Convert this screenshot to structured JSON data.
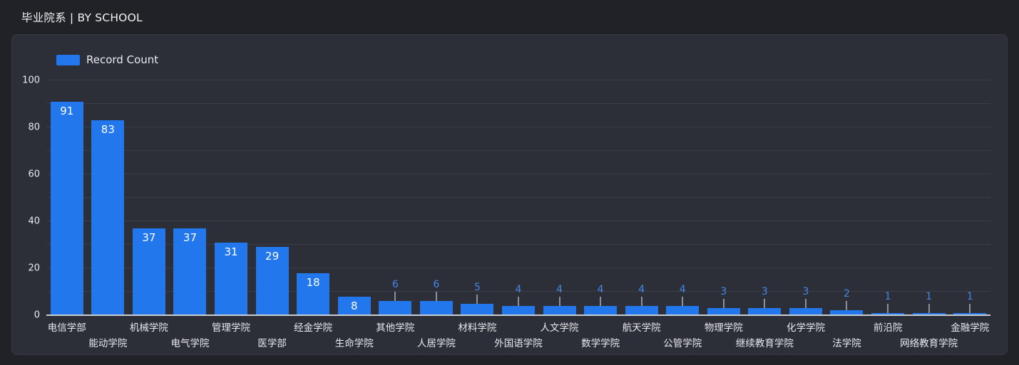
{
  "page": {
    "title": "毕业院系 | BY SCHOOL"
  },
  "legend": {
    "label": "Record Count"
  },
  "colors": {
    "page_bg": "#202227",
    "panel_bg": "#2c2f38",
    "panel_border": "#363a44",
    "bar": "#2277ec",
    "value_label_inside": "#ffffff",
    "value_label_outside": "#4487e6",
    "leader_line": "#8b9099",
    "gridline": "#3a3e47",
    "axis_line": "#c9ced6",
    "axis_text": "#e8eaed"
  },
  "chart_data": {
    "type": "bar",
    "title": "毕业院系 | BY SCHOOL",
    "legend_entries": [
      "Record Count"
    ],
    "legend_position": "top-left",
    "categories": [
      "电信学部",
      "能动学院",
      "机械学院",
      "电气学院",
      "管理学院",
      "医学部",
      "经金学院",
      "生命学院",
      "其他学院",
      "人居学院",
      "材料学院",
      "外国语学院",
      "人文学院",
      "数学学院",
      "航天学院",
      "公管学院",
      "物理学院",
      "继续教育学院",
      "化学学院",
      "法学院",
      "前沿院",
      "网络教育学院",
      "金融学院"
    ],
    "values": [
      91,
      83,
      37,
      37,
      31,
      29,
      18,
      8,
      6,
      6,
      5,
      4,
      4,
      4,
      4,
      4,
      3,
      3,
      3,
      2,
      1,
      1,
      1
    ],
    "xlabel": "",
    "ylabel": "",
    "ylim": [
      0,
      100
    ],
    "yticks": [
      0,
      20,
      40,
      60,
      80,
      100
    ],
    "grid_interval": 10,
    "grid": true,
    "inside_label_min_value": 8,
    "x_labels_staggered": true
  }
}
